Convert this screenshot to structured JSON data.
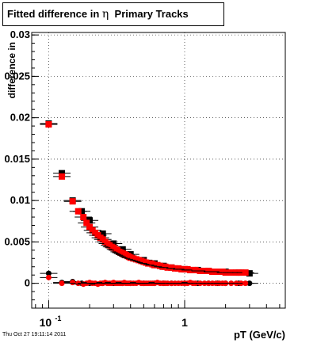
{
  "title": {
    "prefix": "Fitted difference in ",
    "symbol": "η",
    "suffix": "Primary Tracks"
  },
  "timestamp": "Thu Oct 27 19:11:14 2011",
  "chart_data": {
    "type": "scatter",
    "title": "Fitted difference in η Primary Tracks",
    "xlabel": "pT (GeV/c)",
    "ylabel": "difference in",
    "xscale": "log",
    "xlim": [
      0.075,
      5.5
    ],
    "ylim": [
      -0.003,
      0.0303
    ],
    "grid": true,
    "x_ticks": [
      {
        "value": 0.1,
        "base": "10",
        "exp": "-1"
      },
      {
        "value": 1,
        "label": "1"
      }
    ],
    "y_ticks": [
      {
        "value": 0,
        "label": "0"
      },
      {
        "value": 0.005,
        "label": "0.005"
      },
      {
        "value": 0.01,
        "label": "0.01"
      },
      {
        "value": 0.015,
        "label": "0.015"
      },
      {
        "value": 0.02,
        "label": "0.02"
      },
      {
        "value": 0.025,
        "label": "0.025"
      },
      {
        "value": 0.03,
        "label": "0.03"
      }
    ],
    "series": [
      {
        "marker": "square",
        "color": "#000000",
        "x": [
          0.1,
          0.125,
          0.15,
          0.175,
          0.2,
          0.25,
          0.3,
          0.35,
          0.4,
          0.5,
          0.6,
          0.7,
          0.8,
          1.0,
          1.25,
          1.5,
          1.75,
          2.0,
          2.5,
          3.0
        ],
        "y": [
          0.0193,
          0.0133,
          0.01,
          0.0087,
          0.0076,
          0.006,
          0.0048,
          0.0041,
          0.0035,
          0.0028,
          0.0024,
          0.0021,
          0.0019,
          0.0017,
          0.0016,
          0.0015,
          0.0014,
          0.0014,
          0.0013,
          0.0012
        ]
      },
      {
        "marker": "square",
        "color": "#ff0000",
        "x": [
          0.1,
          0.125,
          0.15,
          0.165,
          0.18,
          0.19,
          0.2,
          0.21,
          0.22,
          0.23,
          0.24,
          0.25,
          0.26,
          0.27,
          0.28,
          0.29,
          0.3,
          0.31,
          0.32,
          0.33,
          0.34,
          0.35,
          0.36,
          0.37,
          0.38,
          0.39,
          0.4,
          0.42,
          0.44,
          0.46,
          0.48,
          0.5,
          0.52,
          0.54,
          0.56,
          0.58,
          0.6,
          0.63,
          0.66,
          0.69,
          0.72,
          0.75,
          0.8,
          0.85,
          0.9,
          0.95,
          1.0,
          1.05,
          1.1,
          1.15,
          1.2,
          1.3,
          1.4,
          1.5,
          1.6,
          1.7,
          1.8,
          1.9,
          2.0,
          2.2,
          2.4,
          2.6,
          2.8
        ],
        "y": [
          0.0192,
          0.0129,
          0.0099,
          0.0087,
          0.008,
          0.0073,
          0.0068,
          0.0064,
          0.0061,
          0.0058,
          0.0055,
          0.0053,
          0.005,
          0.0048,
          0.0046,
          0.0044,
          0.0043,
          0.0041,
          0.004,
          0.0038,
          0.0037,
          0.0036,
          0.0035,
          0.0034,
          0.0033,
          0.0032,
          0.0031,
          0.003,
          0.0029,
          0.0028,
          0.0027,
          0.0026,
          0.0025,
          0.0024,
          0.0024,
          0.0023,
          0.0022,
          0.0022,
          0.0021,
          0.002,
          0.002,
          0.0019,
          0.0019,
          0.0018,
          0.0018,
          0.0017,
          0.0017,
          0.0017,
          0.0016,
          0.0016,
          0.0016,
          0.0015,
          0.0015,
          0.0015,
          0.0014,
          0.0014,
          0.0014,
          0.0014,
          0.0013,
          0.0013,
          0.0013,
          0.0013,
          0.0013
        ]
      },
      {
        "marker": "circle",
        "color": "#000000",
        "x": [
          0.1,
          0.125,
          0.15,
          0.175,
          0.2,
          0.25,
          0.3,
          0.35,
          0.4,
          0.5,
          0.6,
          0.7,
          0.8,
          1.0,
          1.25,
          1.5,
          1.75,
          2.0,
          2.5,
          3.0
        ],
        "y": [
          0.0012,
          0.0001,
          0.0002,
          0.0,
          0.0,
          0.0,
          0.0,
          0.0,
          0.0,
          0.0,
          0.0,
          0.0,
          0.0,
          0.0,
          0.0,
          0.0,
          0.0,
          0.0,
          0.0,
          0.0
        ]
      },
      {
        "marker": "circle",
        "color": "#ff0000",
        "x": [
          0.1,
          0.125,
          0.15,
          0.165,
          0.18,
          0.19,
          0.2,
          0.21,
          0.22,
          0.23,
          0.24,
          0.25,
          0.26,
          0.27,
          0.28,
          0.29,
          0.3,
          0.31,
          0.32,
          0.33,
          0.34,
          0.35,
          0.36,
          0.37,
          0.38,
          0.39,
          0.4,
          0.42,
          0.44,
          0.46,
          0.48,
          0.5,
          0.52,
          0.54,
          0.56,
          0.58,
          0.6,
          0.63,
          0.66,
          0.69,
          0.72,
          0.75,
          0.8,
          0.85,
          0.9,
          0.95,
          1.0,
          1.05,
          1.1,
          1.15,
          1.2,
          1.3,
          1.4,
          1.5,
          1.6,
          1.7,
          1.8,
          1.9,
          2.0,
          2.2,
          2.4,
          2.6,
          2.8
        ],
        "y": [
          0.0007,
          0.0,
          0.0001,
          0.0,
          -0.0001,
          0.0,
          0.0001,
          0.0,
          0.0,
          -0.0001,
          0.0,
          0.0,
          0.0001,
          0.0,
          0.0,
          0.0,
          0.0001,
          0.0,
          0.0,
          0.0,
          0.0,
          0.0,
          0.0001,
          0.0,
          0.0,
          0.0,
          0.0,
          0.0,
          0.0,
          0.0001,
          0.0,
          0.0,
          0.0,
          0.0,
          0.0,
          0.0,
          0.0,
          0.0001,
          0.0,
          0.0,
          0.0,
          0.0,
          0.0,
          0.0,
          0.0,
          0.0,
          0.0,
          0.0,
          0.0001,
          0.0,
          0.0,
          0.0,
          0.0,
          0.0,
          0.0,
          0.0,
          0.0,
          0.0,
          0.0,
          0.0,
          0.0,
          0.0,
          0.0
        ]
      }
    ]
  }
}
